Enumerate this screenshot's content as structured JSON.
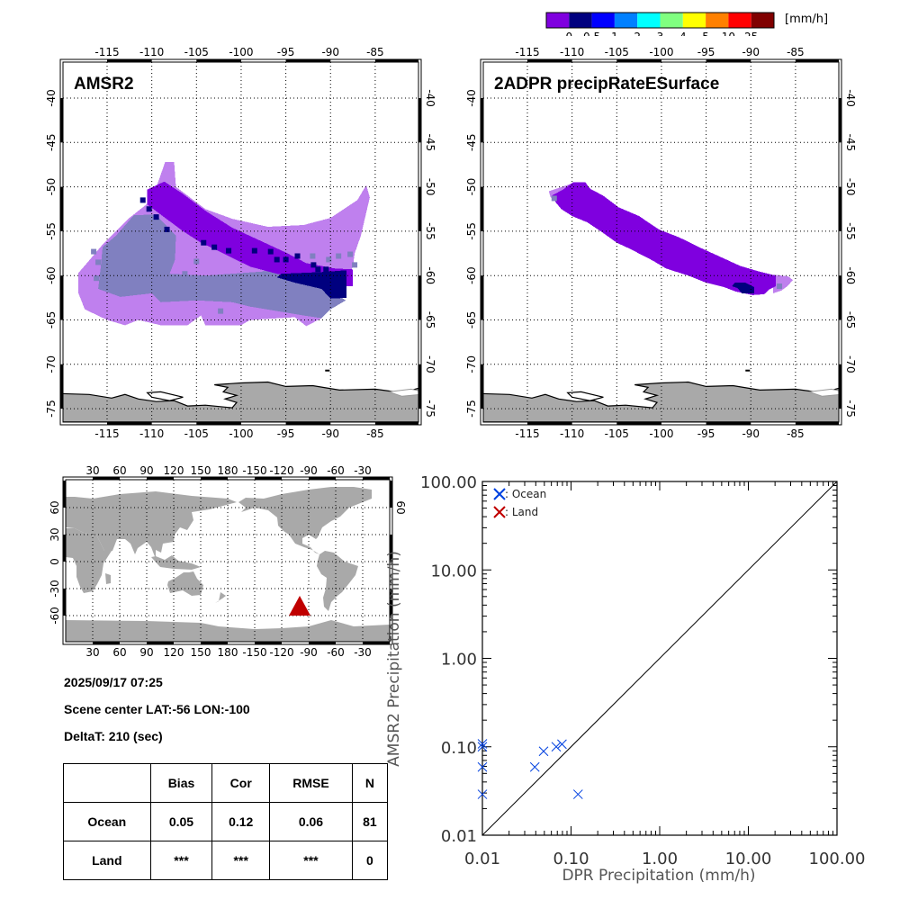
{
  "colorbar": {
    "unit": "[mm/h]",
    "labels": [
      "0",
      "0.5",
      "1",
      "2",
      "3",
      "4",
      "5",
      "10",
      "25"
    ],
    "colors": [
      "#7F00DF",
      "#00007F",
      "#0000FF",
      "#0080FF",
      "#00FFFF",
      "#80FF80",
      "#FFFF00",
      "#FF8000",
      "#FF0000",
      "#800000"
    ]
  },
  "colors": {
    "land": "#A9A9A9",
    "light_precip": "#BF80EE",
    "overlap_precip": "#8080C0",
    "medium_precip": "#7F00DF",
    "heavy_precip": "#00007F",
    "ocean_marker": "#0040E0",
    "land_marker": "#C00000",
    "location_marker": "#C00000"
  },
  "panels": {
    "amsr2": {
      "title": "AMSR2"
    },
    "dpr": {
      "title": "2ADPR precipRateESurface"
    }
  },
  "regional_axes": {
    "lon_ticks": [
      "-115",
      "-110",
      "-105",
      "-100",
      "-95",
      "-90",
      "-85"
    ],
    "lon_values": [
      -115,
      -110,
      -105,
      -100,
      -95,
      -90,
      -85
    ],
    "lat_ticks": [
      "-40",
      "-45",
      "-50",
      "-55",
      "-60",
      "-65",
      "-70",
      "-75"
    ],
    "lat_values": [
      -40,
      -45,
      -50,
      -55,
      -60,
      -65,
      -70,
      -75
    ],
    "lon_range": [
      -120,
      -80
    ],
    "lat_range": [
      -35,
      -76
    ]
  },
  "world_axes": {
    "lon_ticks": [
      "30",
      "60",
      "90",
      "120",
      "150",
      "180",
      "-150",
      "-120",
      "-90",
      "-60",
      "-30"
    ],
    "lat_ticks_left": [
      "60",
      "30",
      "0",
      "-30",
      "-60"
    ],
    "lat_ticks_right": [
      "60",
      "30",
      "0",
      "-30",
      "-60"
    ],
    "marker": {
      "lat": -56,
      "lon": -100
    }
  },
  "info": {
    "datetime": "2025/09/17 07:25",
    "scene_center": "Scene center LAT:-56   LON:-100",
    "delta_t": "DeltaT:  210 (sec)"
  },
  "stats_table": {
    "headers": [
      "",
      "Bias",
      "Cor",
      "RMSE",
      "N"
    ],
    "rows": [
      [
        "Ocean",
        "0.05",
        "0.12",
        "0.06",
        "81"
      ],
      [
        "Land",
        "***",
        "***",
        "***",
        "0"
      ]
    ]
  },
  "chart_data": {
    "type": "scatter",
    "xlabel": "DPR Precipitation (mm/h)",
    "ylabel": "AMSR2 Precipitation (mm/h)",
    "xscale": "log",
    "yscale": "log",
    "xlim": [
      0.01,
      100
    ],
    "ylim": [
      0.01,
      100
    ],
    "xtick_labels": [
      "0.01",
      "0.10",
      "1.00",
      "10.00",
      "100.00"
    ],
    "ytick_labels": [
      "0.01",
      "0.10",
      "1.00",
      "10.00",
      "100.00"
    ],
    "tick_values": [
      0.01,
      0.1,
      1,
      10,
      100
    ],
    "reference_line": "1:1",
    "legend": {
      "placement": "top-left",
      "entries": [
        ": Ocean",
        ": Land"
      ]
    },
    "series": [
      {
        "name": "Ocean",
        "points": [
          {
            "x": 0.01,
            "y": 0.108
          },
          {
            "x": 0.01,
            "y": 0.1
          },
          {
            "x": 0.01,
            "y": 0.059
          },
          {
            "x": 0.01,
            "y": 0.029
          },
          {
            "x": 0.039,
            "y": 0.059
          },
          {
            "x": 0.049,
            "y": 0.089
          },
          {
            "x": 0.068,
            "y": 0.1
          },
          {
            "x": 0.079,
            "y": 0.107
          },
          {
            "x": 0.12,
            "y": 0.029
          }
        ]
      },
      {
        "name": "Land",
        "points": []
      }
    ]
  }
}
